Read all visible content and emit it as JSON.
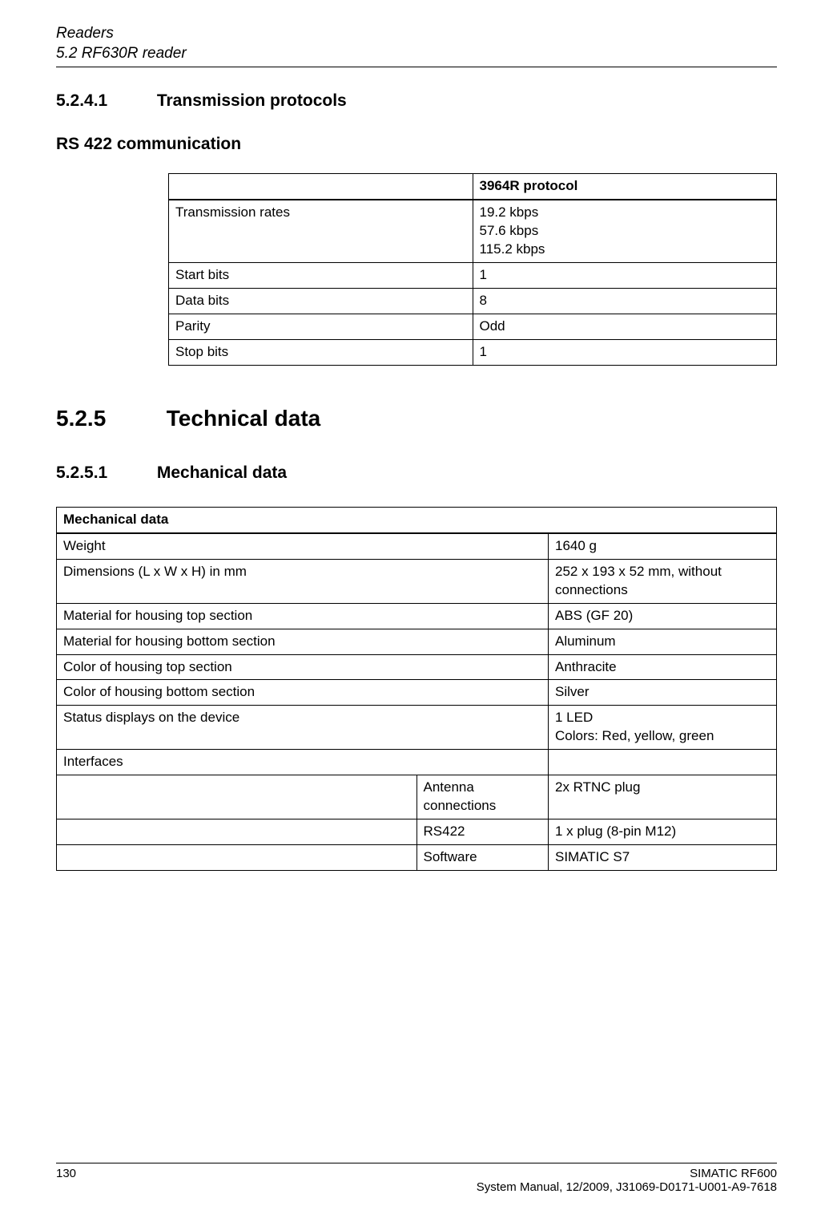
{
  "header": {
    "title": "Readers",
    "subtitle": "5.2 RF630R reader"
  },
  "sections": {
    "s52411": {
      "num": "5.2.4.1",
      "title": "Transmission protocols"
    },
    "rs422": {
      "title": "RS 422 communication"
    },
    "s525": {
      "num": "5.2.5",
      "title": "Technical data"
    },
    "s5251": {
      "num": "5.2.5.1",
      "title": "Mechanical data"
    }
  },
  "protocol_table": {
    "header_col2": "3964R protocol",
    "rows": [
      {
        "label": "Transmission rates",
        "value": "19.2 kbps\n57.6 kbps\n115.2 kbps"
      },
      {
        "label": "Start bits",
        "value": "1"
      },
      {
        "label": "Data bits",
        "value": "8"
      },
      {
        "label": "Parity",
        "value": "Odd"
      },
      {
        "label": "Stop bits",
        "value": "1"
      }
    ]
  },
  "mech_table": {
    "header": "Mechanical data",
    "rows": [
      {
        "label": "Weight",
        "value": "1640 g"
      },
      {
        "label": "Dimensions (L x W x H) in mm",
        "value": "252 x 193 x 52 mm, without connections"
      },
      {
        "label": "Material for housing top section",
        "value": "ABS (GF 20)"
      },
      {
        "label": "Material for housing bottom section",
        "value": "Aluminum"
      },
      {
        "label": "Color of housing top section",
        "value": "Anthracite"
      },
      {
        "label": "Color of housing bottom section",
        "value": "Silver"
      },
      {
        "label": "Status displays on the device",
        "value": "1 LED\nColors: Red, yellow, green"
      }
    ],
    "interfaces_label": "Interfaces",
    "interfaces": [
      {
        "label": "Antenna connections",
        "value": "2x RTNC plug"
      },
      {
        "label": "RS422",
        "value": "1 x plug (8-pin M12)"
      },
      {
        "label": "Software",
        "value": "SIMATIC S7"
      }
    ]
  },
  "footer": {
    "page_number": "130",
    "doc_title": "SIMATIC RF600",
    "doc_info": "System Manual, 12/2009, J31069-D0171-U001-A9-7618"
  }
}
